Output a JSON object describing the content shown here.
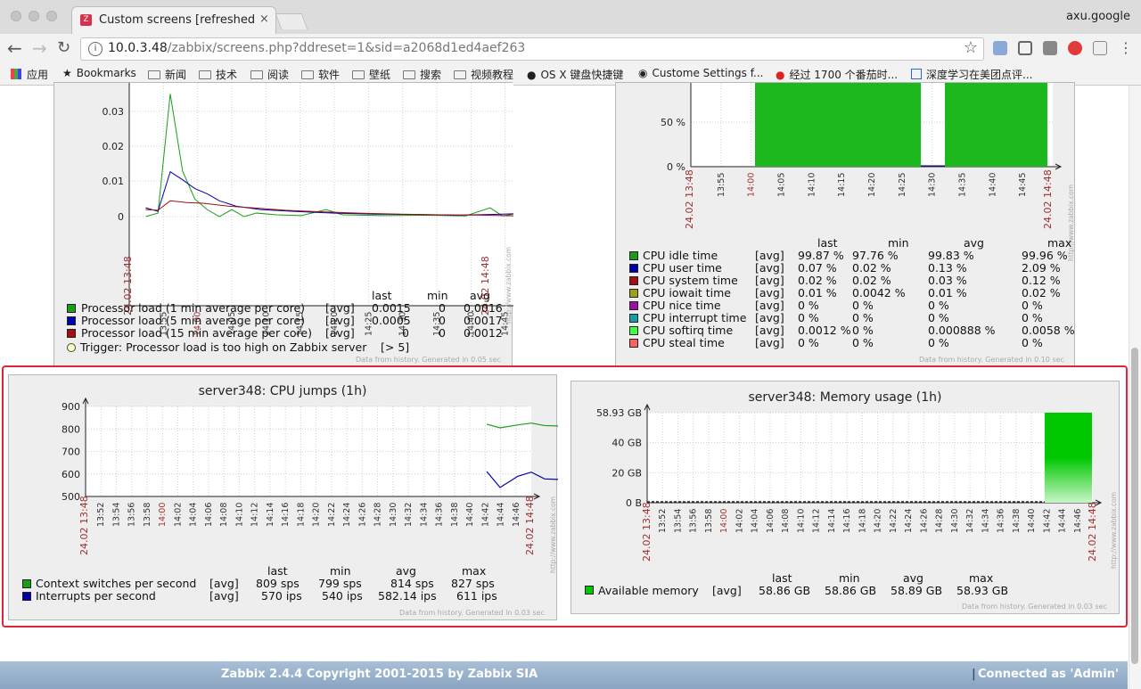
{
  "browser": {
    "tab_title": "Custom screens [refreshed every",
    "tab_close": "×",
    "profile": "axu.google",
    "url_host": "10.0.3.48",
    "url_path": "/zabbix/screens.php?ddreset=1&sid=a2068d1ed4aef263",
    "bookmarks": [
      {
        "label": "应用"
      },
      {
        "label": "Bookmarks"
      },
      {
        "label": "新闻"
      },
      {
        "label": "技术"
      },
      {
        "label": "阅读"
      },
      {
        "label": "软件"
      },
      {
        "label": "壁纸"
      },
      {
        "label": "搜索"
      },
      {
        "label": "视频教程"
      },
      {
        "label": "OS X 键盘快捷键"
      },
      {
        "label": "Custome Settings f..."
      },
      {
        "label": "经过 1700 个番茄时..."
      },
      {
        "label": "深度学习在美团点评..."
      }
    ]
  },
  "colors": {
    "green": "#1a9e1a",
    "blue": "#0000aa",
    "darkred": "#a01010",
    "area_green": "#00c800",
    "highlight": "#e0253a"
  },
  "graphs": {
    "processor_load": {
      "date_start": "24.02 13:48",
      "date_end": "24.02 14:48",
      "header": {
        "last": "last",
        "min": "min",
        "avg": "avg"
      },
      "rows": [
        {
          "name": "Processor load (1 min average per core)",
          "func": "[avg]",
          "last": "0.0015",
          "min": "0",
          "avg": "0.0016"
        },
        {
          "name": "Processor load (5 min average per core)",
          "func": "[avg]",
          "last": "0.0005",
          "min": "0",
          "avg": "0.0017"
        },
        {
          "name": "Processor load (15 min average per core)",
          "func": "[avg]",
          "last": "0",
          "min": "0",
          "avg": "0.0012"
        }
      ],
      "trigger": "Trigger: Processor load is too high on Zabbix server",
      "trigger_value": "[> 5]",
      "footnote": "Data from history. Generated in 0.05 sec"
    },
    "cpu_util": {
      "date_start": "24.02 13:48",
      "date_end": "24.02 14:48",
      "header": {
        "last": "last",
        "min": "min",
        "avg": "avg",
        "max": "max"
      },
      "rows": [
        {
          "name": "CPU idle time",
          "func": "[avg]",
          "last": "99.87 %",
          "min": "97.76 %",
          "avg": "99.83 %",
          "max": "99.96 %",
          "color": "#1a9e1a"
        },
        {
          "name": "CPU user time",
          "func": "[avg]",
          "last": "0.07 %",
          "min": "0.02 %",
          "avg": "0.13 %",
          "max": "2.09 %",
          "color": "#0000aa"
        },
        {
          "name": "CPU system time",
          "func": "[avg]",
          "last": "0.02 %",
          "min": "0.02 %",
          "avg": "0.03 %",
          "max": "0.12 %",
          "color": "#a01010"
        },
        {
          "name": "CPU iowait time",
          "func": "[avg]",
          "last": "0.01 %",
          "min": "0.0042 %",
          "avg": "0.01 %",
          "max": "0.02 %",
          "color": "#a0a010"
        },
        {
          "name": "CPU nice time",
          "func": "[avg]",
          "last": "0 %",
          "min": "0 %",
          "avg": "0 %",
          "max": "0 %",
          "color": "#a010a0"
        },
        {
          "name": "CPU interrupt time",
          "func": "[avg]",
          "last": "0 %",
          "min": "0 %",
          "avg": "0 %",
          "max": "0 %",
          "color": "#10a0a0"
        },
        {
          "name": "CPU softirq time",
          "func": "[avg]",
          "last": "0.0012 %",
          "min": "0 %",
          "avg": "0.000888 %",
          "max": "0.0058 %",
          "color": "#40ff40"
        },
        {
          "name": "CPU steal time",
          "func": "[avg]",
          "last": "0 %",
          "min": "0 %",
          "avg": "0 %",
          "max": "0 %",
          "color": "#ff6060"
        }
      ],
      "footnote": "Data from history. Generated in 0.10 sec"
    },
    "cpu_jumps": {
      "title": "server348: CPU jumps (1h)",
      "date_start": "24.02 13:48",
      "date_end": "24.02 14:48",
      "header": {
        "last": "last",
        "min": "min",
        "avg": "avg",
        "max": "max"
      },
      "rows": [
        {
          "name": "Context switches per second",
          "func": "[avg]",
          "last": "809 sps",
          "min": "799 sps",
          "avg": "814 sps",
          "max": "827 sps"
        },
        {
          "name": "Interrupts per second",
          "func": "[avg]",
          "last": "570 ips",
          "min": "540 ips",
          "avg": "582.14 ips",
          "max": "611 ips"
        }
      ],
      "footnote": "Data from history. Generated in 0.03 sec"
    },
    "memory": {
      "title": "server348: Memory usage (1h)",
      "date_start": "24.02 13:48",
      "date_end": "24.02 14:48",
      "header": {
        "last": "last",
        "min": "min",
        "avg": "avg",
        "max": "max"
      },
      "rows": [
        {
          "name": "Available memory",
          "func": "[avg]",
          "last": "58.86 GB",
          "min": "58.86 GB",
          "avg": "58.89 GB",
          "max": "58.93 GB"
        }
      ],
      "footnote": "Data from history. Generated in 0.03 sec"
    }
  },
  "chart_data": [
    {
      "type": "line",
      "ylim": [
        0,
        0.035
      ],
      "yticks": [
        "0.03",
        "0.02",
        "0.01",
        "0"
      ],
      "xticks": [
        "13:55",
        "14:00",
        "14:05",
        "14:10",
        "14:15",
        "14:20",
        "14:25",
        "14:30",
        "14:35",
        "14:40",
        "14:45"
      ],
      "series": [
        {
          "name": "Processor load (1 min average per core)",
          "color": "#1a9e1a"
        },
        {
          "name": "Processor load (5 min average per core)",
          "color": "#0000aa"
        },
        {
          "name": "Processor load (15 min average per core)",
          "color": "#a01010"
        }
      ]
    },
    {
      "type": "area",
      "yticks": [
        "50 %",
        "0 %"
      ],
      "xticks": [
        "13:55",
        "14:00",
        "14:05",
        "14:10",
        "14:15",
        "14:20",
        "14:25",
        "14:30",
        "14:35",
        "14:40",
        "14:45"
      ]
    },
    {
      "type": "line",
      "ylim": [
        500,
        900
      ],
      "yticks": [
        "900",
        "800",
        "700",
        "600",
        "500"
      ],
      "xticks": [
        "13:52",
        "13:54",
        "13:56",
        "13:58",
        "14:00",
        "14:02",
        "14:04",
        "14:06",
        "14:08",
        "14:10",
        "14:12",
        "14:14",
        "14:16",
        "14:18",
        "14:20",
        "14:22",
        "14:24",
        "14:26",
        "14:28",
        "14:30",
        "14:32",
        "14:34",
        "14:36",
        "14:38",
        "14:40",
        "14:42",
        "14:44",
        "14:46"
      ],
      "series": [
        {
          "name": "Context switches per second",
          "color": "#1a9e1a",
          "points": [
            [
              14.7,
              821
            ],
            [
              14.73,
              805
            ],
            [
              14.77,
              818
            ],
            [
              14.8,
              826
            ],
            [
              14.83,
              815
            ],
            [
              14.87,
              813
            ],
            [
              14.9,
              812
            ],
            [
              14.93,
              809
            ]
          ]
        },
        {
          "name": "Interrupts per second",
          "color": "#0000aa",
          "points": [
            [
              14.7,
              611
            ],
            [
              14.73,
              540
            ],
            [
              14.77,
              590
            ],
            [
              14.8,
              608
            ],
            [
              14.83,
              578
            ],
            [
              14.87,
              575
            ],
            [
              14.9,
              570
            ],
            [
              14.93,
              570
            ]
          ]
        }
      ]
    },
    {
      "type": "area",
      "yticks": [
        "58.93 GB",
        "40 GB",
        "20 GB",
        "0 B"
      ],
      "xticks": [
        "13:52",
        "13:54",
        "13:56",
        "13:58",
        "14:00",
        "14:02",
        "14:04",
        "14:06",
        "14:08",
        "14:10",
        "14:12",
        "14:14",
        "14:16",
        "14:18",
        "14:20",
        "14:22",
        "14:24",
        "14:26",
        "14:28",
        "14:30",
        "14:32",
        "14:34",
        "14:36",
        "14:38",
        "14:40",
        "14:42",
        "14:44",
        "14:46"
      ],
      "series": [
        {
          "name": "Available memory",
          "color": "#00c800",
          "values_gb": [
            58.93
          ]
        }
      ]
    }
  ],
  "footer": {
    "copyright": "Zabbix 2.4.4 Copyright 2001-2015 by Zabbix SIA",
    "separator": "|",
    "connected": "Connected as 'Admin'"
  }
}
